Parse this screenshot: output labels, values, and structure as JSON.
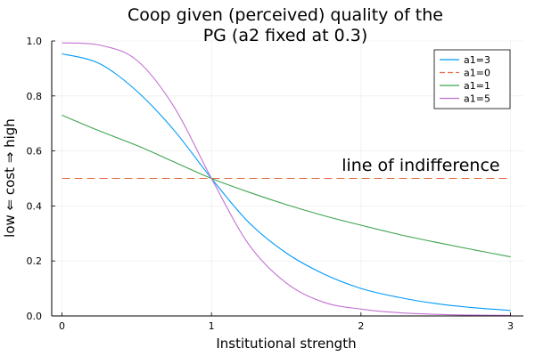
{
  "chart_data": {
    "type": "line",
    "title": [
      "Coop given (perceived) quality of the",
      "PG (a2 fixed at 0.3)"
    ],
    "xlabel": "Institutional strength",
    "ylabel": "low   ⇐   cost   ⇒   high",
    "xlim": [
      0,
      3
    ],
    "ylim": [
      0,
      1
    ],
    "xticks": [
      0,
      1,
      2,
      3
    ],
    "yticks": [
      0.0,
      0.2,
      0.4,
      0.6,
      0.8,
      1.0
    ],
    "ytick_labels": [
      "0.0",
      "0.2",
      "0.4",
      "0.6",
      "0.8",
      "1.0"
    ],
    "xtick_labels": [
      "0",
      "1",
      "2",
      "3"
    ],
    "grid": true,
    "legend_position": "top-right",
    "annotation": {
      "text": "line of indifference",
      "x": 2.4,
      "y": 0.53
    },
    "series": [
      {
        "name": "a1=3",
        "color": "#009af9",
        "dash": false,
        "x": [
          0,
          0.25,
          0.5,
          0.75,
          1.0,
          1.25,
          1.5,
          1.75,
          2.0,
          2.25,
          2.5,
          2.75,
          3.0
        ],
        "y": [
          0.953,
          0.918,
          0.818,
          0.675,
          0.5,
          0.34,
          0.229,
          0.153,
          0.1,
          0.068,
          0.045,
          0.03,
          0.02
        ]
      },
      {
        "name": "a1=0",
        "color": "#e26f46",
        "dash": true,
        "x": [
          0,
          3.0
        ],
        "y": [
          0.5,
          0.5
        ]
      },
      {
        "name": "a1=1",
        "color": "#3da44d",
        "dash": false,
        "x": [
          0,
          0.25,
          0.5,
          0.75,
          1.0,
          1.25,
          1.5,
          1.75,
          2.0,
          2.25,
          2.5,
          2.75,
          3.0
        ],
        "y": [
          0.73,
          0.673,
          0.62,
          0.56,
          0.5,
          0.45,
          0.405,
          0.365,
          0.33,
          0.297,
          0.268,
          0.241,
          0.215
        ]
      },
      {
        "name": "a1=5",
        "color": "#c271d2",
        "dash": false,
        "x": [
          0,
          0.25,
          0.5,
          0.75,
          1.0,
          1.25,
          1.5,
          1.75,
          2.0,
          2.25,
          2.5,
          2.75,
          3.0
        ],
        "y": [
          0.993,
          0.985,
          0.93,
          0.76,
          0.5,
          0.26,
          0.12,
          0.05,
          0.025,
          0.012,
          0.006,
          0.003,
          0.002
        ]
      }
    ]
  }
}
